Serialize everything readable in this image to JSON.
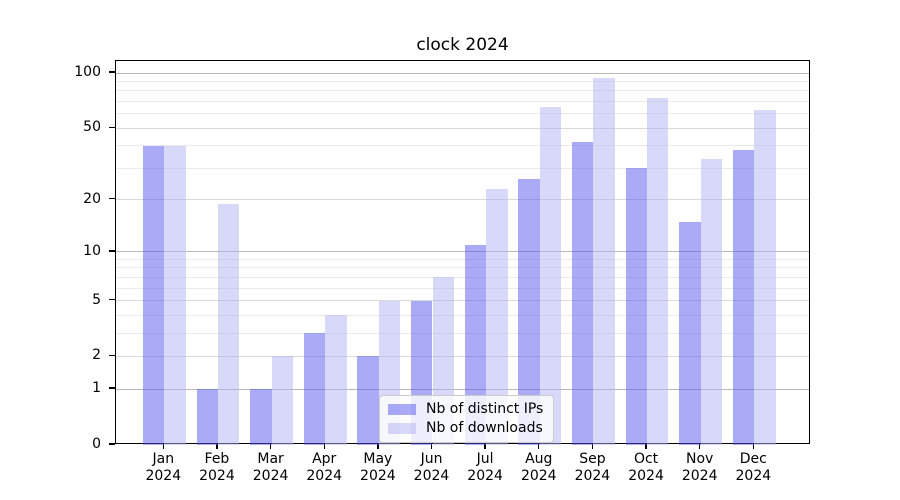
{
  "title": "clock 2024",
  "chart_data": {
    "type": "bar",
    "title": "clock 2024",
    "categories": [
      "Jan 2024",
      "Feb 2024",
      "Mar 2024",
      "Apr 2024",
      "May 2024",
      "Jun 2024",
      "Jul 2024",
      "Aug 2024",
      "Sep 2024",
      "Oct 2024",
      "Nov 2024",
      "Dec 2024"
    ],
    "months": [
      "Jan",
      "Feb",
      "Mar",
      "Apr",
      "May",
      "Jun",
      "Jul",
      "Aug",
      "Sep",
      "Oct",
      "Nov",
      "Dec"
    ],
    "year": "2024",
    "series": [
      {
        "name": "Nb of distinct IPs",
        "key": "distinct-ips",
        "color": "rgba(85,85,238,0.5)",
        "solid_color": "#aaaaf6",
        "values": [
          40,
          1,
          1,
          3,
          2,
          5,
          11,
          26,
          42,
          30,
          15,
          38
        ]
      },
      {
        "name": "Nb of downloads",
        "key": "downloads",
        "color": "rgba(177,177,242,0.5)",
        "solid_color": "#d8d8f8",
        "values": [
          40,
          19,
          2,
          4,
          5,
          7,
          23,
          65,
          94,
          73,
          34,
          63
        ]
      }
    ],
    "y_scale": "log1p",
    "y_ticks": [
      0,
      1,
      2,
      5,
      10,
      20,
      50,
      100
    ],
    "grid_major": [
      1,
      10,
      100
    ],
    "grid_mid": [
      2,
      5,
      20,
      50
    ],
    "grid_minor": [
      3,
      4,
      6,
      7,
      8,
      9,
      30,
      40,
      60,
      70,
      80,
      90
    ],
    "ylim": [
      0,
      118
    ],
    "xlabel": "",
    "ylabel": "",
    "grid": true,
    "legend_position": "lower center"
  },
  "legend": {
    "items": [
      "Nb of distinct IPs",
      "Nb of downloads"
    ]
  }
}
